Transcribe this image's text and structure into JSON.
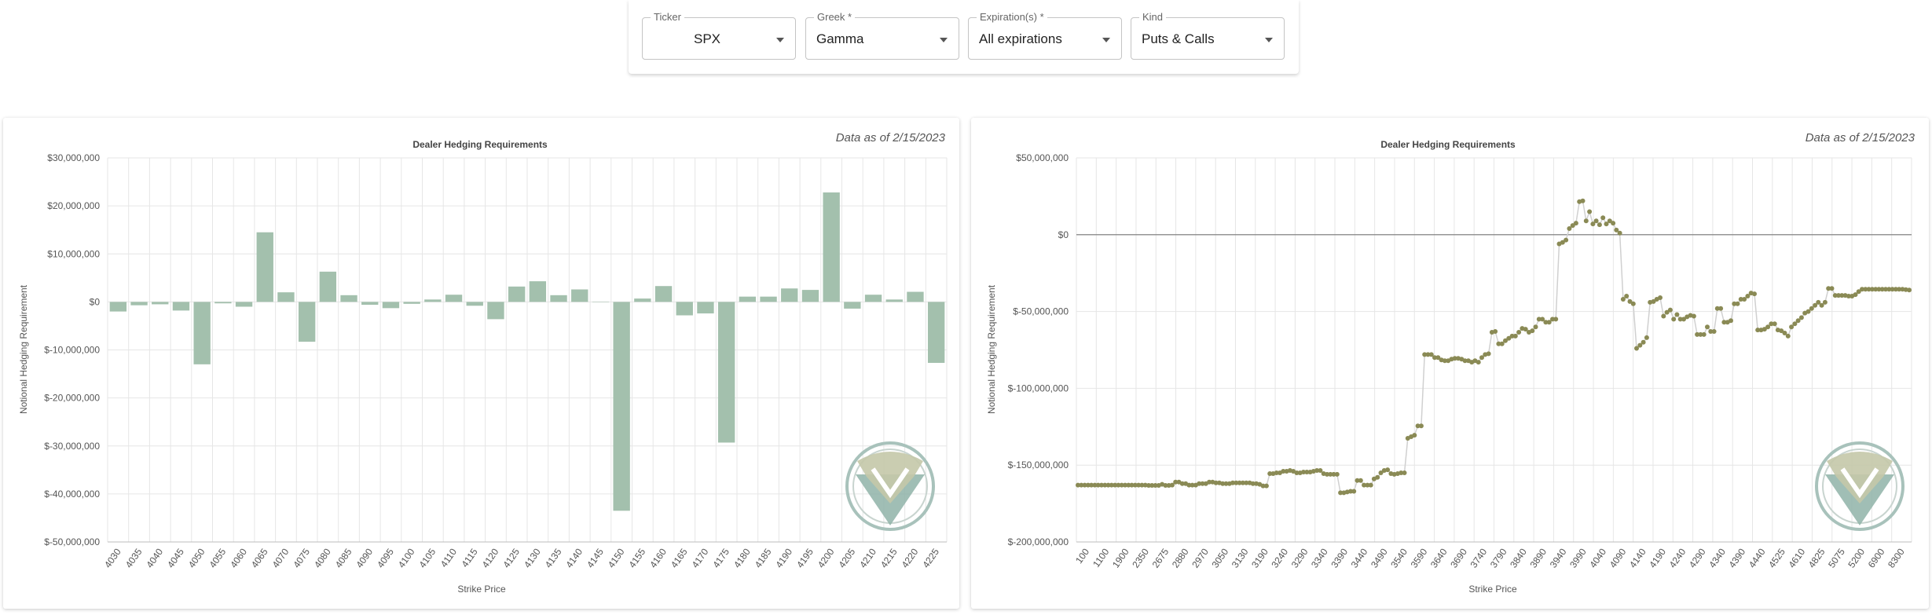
{
  "controls": {
    "ticker": {
      "label": "Ticker",
      "value": "SPX"
    },
    "greek": {
      "label": "Greek *",
      "value": "Gamma"
    },
    "expiration": {
      "label": "Expiration(s) *",
      "value": "All expirations"
    },
    "kind": {
      "label": "Kind",
      "value": "Puts & Calls"
    }
  },
  "colors": {
    "bar": "#a3c0ad",
    "line_point": "#8a8a55",
    "line": "#d0d0d0",
    "logo_top": "#c4c8a8",
    "logo_bottom": "#8fb3a8"
  },
  "chart_data": [
    {
      "type": "bar",
      "title": "Dealer Hedging Requirements",
      "subtitle": "Data as of 2/15/2023",
      "xlabel": "Strike Price",
      "ylabel": "Notional Hedging Requirement",
      "ylim": [
        -50000000,
        30000000
      ],
      "yticks": [
        30000000,
        20000000,
        10000000,
        0,
        -10000000,
        -20000000,
        -30000000,
        -40000000,
        -50000000
      ],
      "ytick_labels": [
        "$30,000,000",
        "$20,000,000",
        "$10,000,000",
        "$0",
        "$-10,000,000",
        "$-20,000,000",
        "$-30,000,000",
        "$-40,000,000",
        "$-50,000,000"
      ],
      "grid": true,
      "categories": [
        "4030",
        "4035",
        "4040",
        "4045",
        "4050",
        "4055",
        "4060",
        "4065",
        "4070",
        "4075",
        "4080",
        "4085",
        "4090",
        "4095",
        "4100",
        "4105",
        "4110",
        "4115",
        "4120",
        "4125",
        "4130",
        "4135",
        "4140",
        "4145",
        "4150",
        "4155",
        "4160",
        "4165",
        "4170",
        "4175",
        "4180",
        "4185",
        "4190",
        "4195",
        "4200",
        "4205",
        "4210",
        "4215",
        "4220",
        "4225"
      ],
      "values": [
        -2000000,
        -700000,
        -500000,
        -1800000,
        -13000000,
        -300000,
        -1000000,
        14500000,
        2000000,
        -8300000,
        6300000,
        1400000,
        -600000,
        -1300000,
        -400000,
        500000,
        1500000,
        -800000,
        -3600000,
        3200000,
        4300000,
        1400000,
        2600000,
        0,
        -43500000,
        700000,
        3300000,
        -2800000,
        -2400000,
        -29300000,
        1100000,
        1100000,
        2800000,
        2500000,
        22800000,
        -1400000,
        1500000,
        500000,
        2100000,
        -12700000
      ]
    },
    {
      "type": "line",
      "title": "Dealer Hedging Requirements",
      "subtitle": "Data as of 2/15/2023",
      "xlabel": "Strike Price",
      "ylabel": "Notional Hedging Requirement",
      "ylim": [
        -200000000,
        50000000
      ],
      "yticks": [
        50000000,
        0,
        -50000000,
        -100000000,
        -150000000,
        -200000000
      ],
      "ytick_labels": [
        "$50,000,000",
        "$0",
        "$-50,000,000",
        "$-100,000,000",
        "$-150,000,000",
        "$-200,000,000"
      ],
      "grid": true,
      "x_tick_labels": [
        "100",
        "1100",
        "1900",
        "2350",
        "2675",
        "2880",
        "2970",
        "3050",
        "3130",
        "3190",
        "3240",
        "3290",
        "3340",
        "3390",
        "3440",
        "3490",
        "3540",
        "3590",
        "3640",
        "3690",
        "3740",
        "3790",
        "3840",
        "3890",
        "3940",
        "3990",
        "4040",
        "4090",
        "4140",
        "4190",
        "4240",
        "4290",
        "4340",
        "4390",
        "4440",
        "4525",
        "4610",
        "4825",
        "5075",
        "5200",
        "6900",
        "8300"
      ],
      "y_points": [
        -163000000,
        -163000000,
        -163000000,
        -163000000,
        -163000000,
        -163000000,
        -163000000,
        -163000000,
        -163000000,
        -163000000,
        -163000000,
        -163000000,
        -163000000,
        -163000000,
        -163000000,
        -163000000,
        -163000000,
        -163000000,
        -163000000,
        -163000000,
        -163000000,
        -163200000,
        -163200000,
        -163200000,
        -163200000,
        -162500000,
        -163200000,
        -163200000,
        -163000000,
        -161000000,
        -161000000,
        -162000000,
        -162000000,
        -163000000,
        -163000000,
        -163000000,
        -162000000,
        -162000000,
        -162000000,
        -161000000,
        -161000000,
        -161500000,
        -161500000,
        -162000000,
        -162000000,
        -162000000,
        -161500000,
        -161500000,
        -161500000,
        -161500000,
        -161500000,
        -161500000,
        -162000000,
        -162000000,
        -162500000,
        -163500000,
        -163500000,
        -155500000,
        -155500000,
        -155000000,
        -155000000,
        -154000000,
        -154000000,
        -153500000,
        -154000000,
        -155000000,
        -155000000,
        -154500000,
        -154500000,
        -154500000,
        -154000000,
        -153500000,
        -153500000,
        -155500000,
        -156000000,
        -156000000,
        -156000000,
        -156000000,
        -168000000,
        -168000000,
        -167500000,
        -167000000,
        -167000000,
        -160000000,
        -160000000,
        -163000000,
        -163000000,
        -163000000,
        -159000000,
        -158000000,
        -155000000,
        -153500000,
        -153000000,
        -155500000,
        -156000000,
        -155500000,
        -155000000,
        -155000000,
        -132500000,
        -131500000,
        -130500000,
        -124500000,
        -124500000,
        -78000000,
        -78000000,
        -78000000,
        -80000000,
        -80000000,
        -81500000,
        -82000000,
        -82000000,
        -81000000,
        -80500000,
        -80500000,
        -81000000,
        -82000000,
        -82000000,
        -83000000,
        -82000000,
        -83000000,
        -80000000,
        -78000000,
        -77500000,
        -63500000,
        -63000000,
        -71000000,
        -71000000,
        -69000000,
        -67500000,
        -66000000,
        -66000000,
        -63500000,
        -61000000,
        -61500000,
        -63500000,
        -62500000,
        -60000000,
        -55000000,
        -55000000,
        -57000000,
        -57000000,
        -55000000,
        -55000000,
        -6000000,
        -5000000,
        -3500000,
        4000000,
        6000000,
        7500000,
        21500000,
        22000000,
        9000000,
        15000000,
        7000000,
        9000000,
        6500000,
        11000000,
        7000000,
        9000000,
        7500000,
        3000000,
        1000000,
        -42000000,
        -40000000,
        -43500000,
        -45000000,
        -74000000,
        -72000000,
        -70000000,
        -67000000,
        -44000000,
        -43500000,
        -42000000,
        -41000000,
        -53000000,
        -50500000,
        -49000000,
        -55000000,
        -52000000,
        -55000000,
        -55000000,
        -53500000,
        -52500000,
        -53000000,
        -65000000,
        -65000000,
        -65000000,
        -60000000,
        -63000000,
        -63000000,
        -48000000,
        -48000000,
        -57000000,
        -57000000,
        -56000000,
        -45000000,
        -45000000,
        -42000000,
        -42000000,
        -40000000,
        -38000000,
        -38500000,
        -62000000,
        -62000000,
        -61500000,
        -60000000,
        -58000000,
        -58000000,
        -62000000,
        -62500000,
        -64000000,
        -66000000,
        -60000000,
        -58000000,
        -56000000,
        -54000000,
        -51000000,
        -50000000,
        -48000000,
        -46000000,
        -44000000,
        -46000000,
        -44000000,
        -35000000,
        -35000000,
        -39500000,
        -39500000,
        -39500000,
        -39500000,
        -40000000,
        -40000000,
        -39000000,
        -37000000,
        -35500000,
        -35500000,
        -35500000,
        -35500000,
        -35500000,
        -35500000,
        -35500000,
        -35500000,
        -35500000,
        -35500000,
        -35500000,
        -35500000,
        -35500000,
        -35800000,
        -36000000
      ]
    }
  ]
}
